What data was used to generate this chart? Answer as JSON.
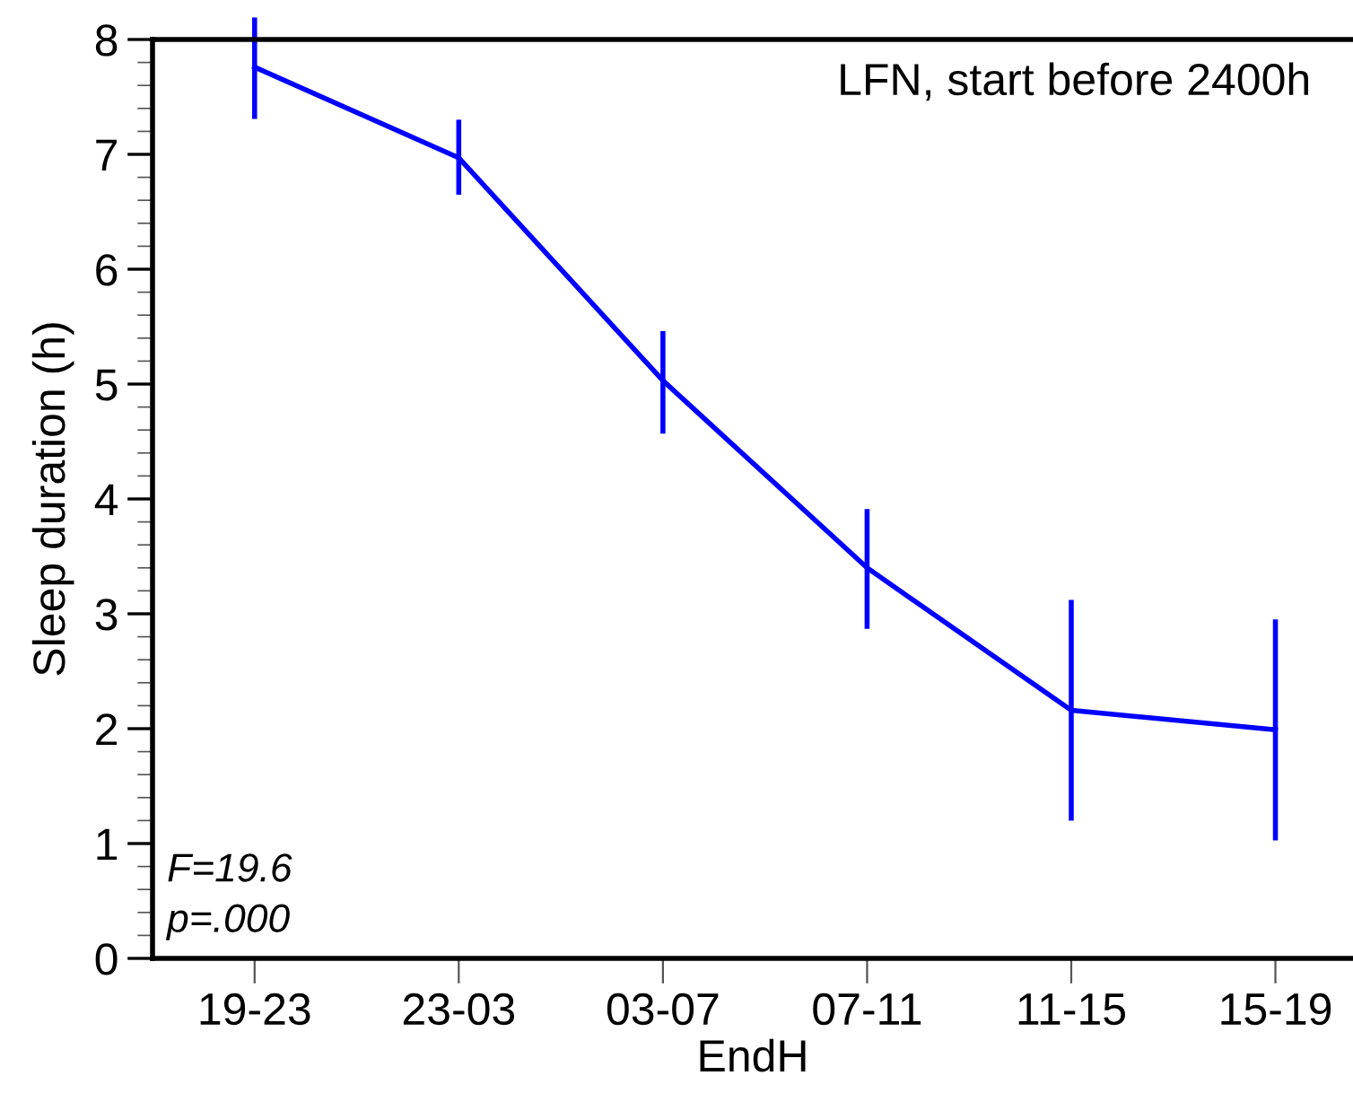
{
  "chart_data": {
    "type": "line",
    "title": "LFN, start before 2400h",
    "xlabel": "EndH",
    "ylabel": "Sleep duration (h)",
    "categories": [
      "19-23",
      "23-03",
      "03-07",
      "07-11",
      "11-15",
      "15-19"
    ],
    "series": [
      {
        "color": "#0000ff",
        "values": [
          7.76,
          6.97,
          5.03,
          3.4,
          2.16,
          1.99
        ],
        "errors": [
          [
            7.33,
            8.17
          ],
          [
            6.67,
            7.28
          ],
          [
            4.59,
            5.44
          ],
          [
            2.89,
            3.89
          ],
          [
            1.22,
            3.1
          ],
          [
            1.05,
            2.93
          ]
        ]
      }
    ],
    "ylim": [
      0,
      8
    ],
    "yticks": [
      0,
      1,
      2,
      3,
      4,
      5,
      6,
      7,
      8
    ],
    "grid": false,
    "legend": false,
    "marker": "none",
    "line_style": "solid",
    "annotations": [
      "F=19.6",
      "p=.000"
    ]
  }
}
